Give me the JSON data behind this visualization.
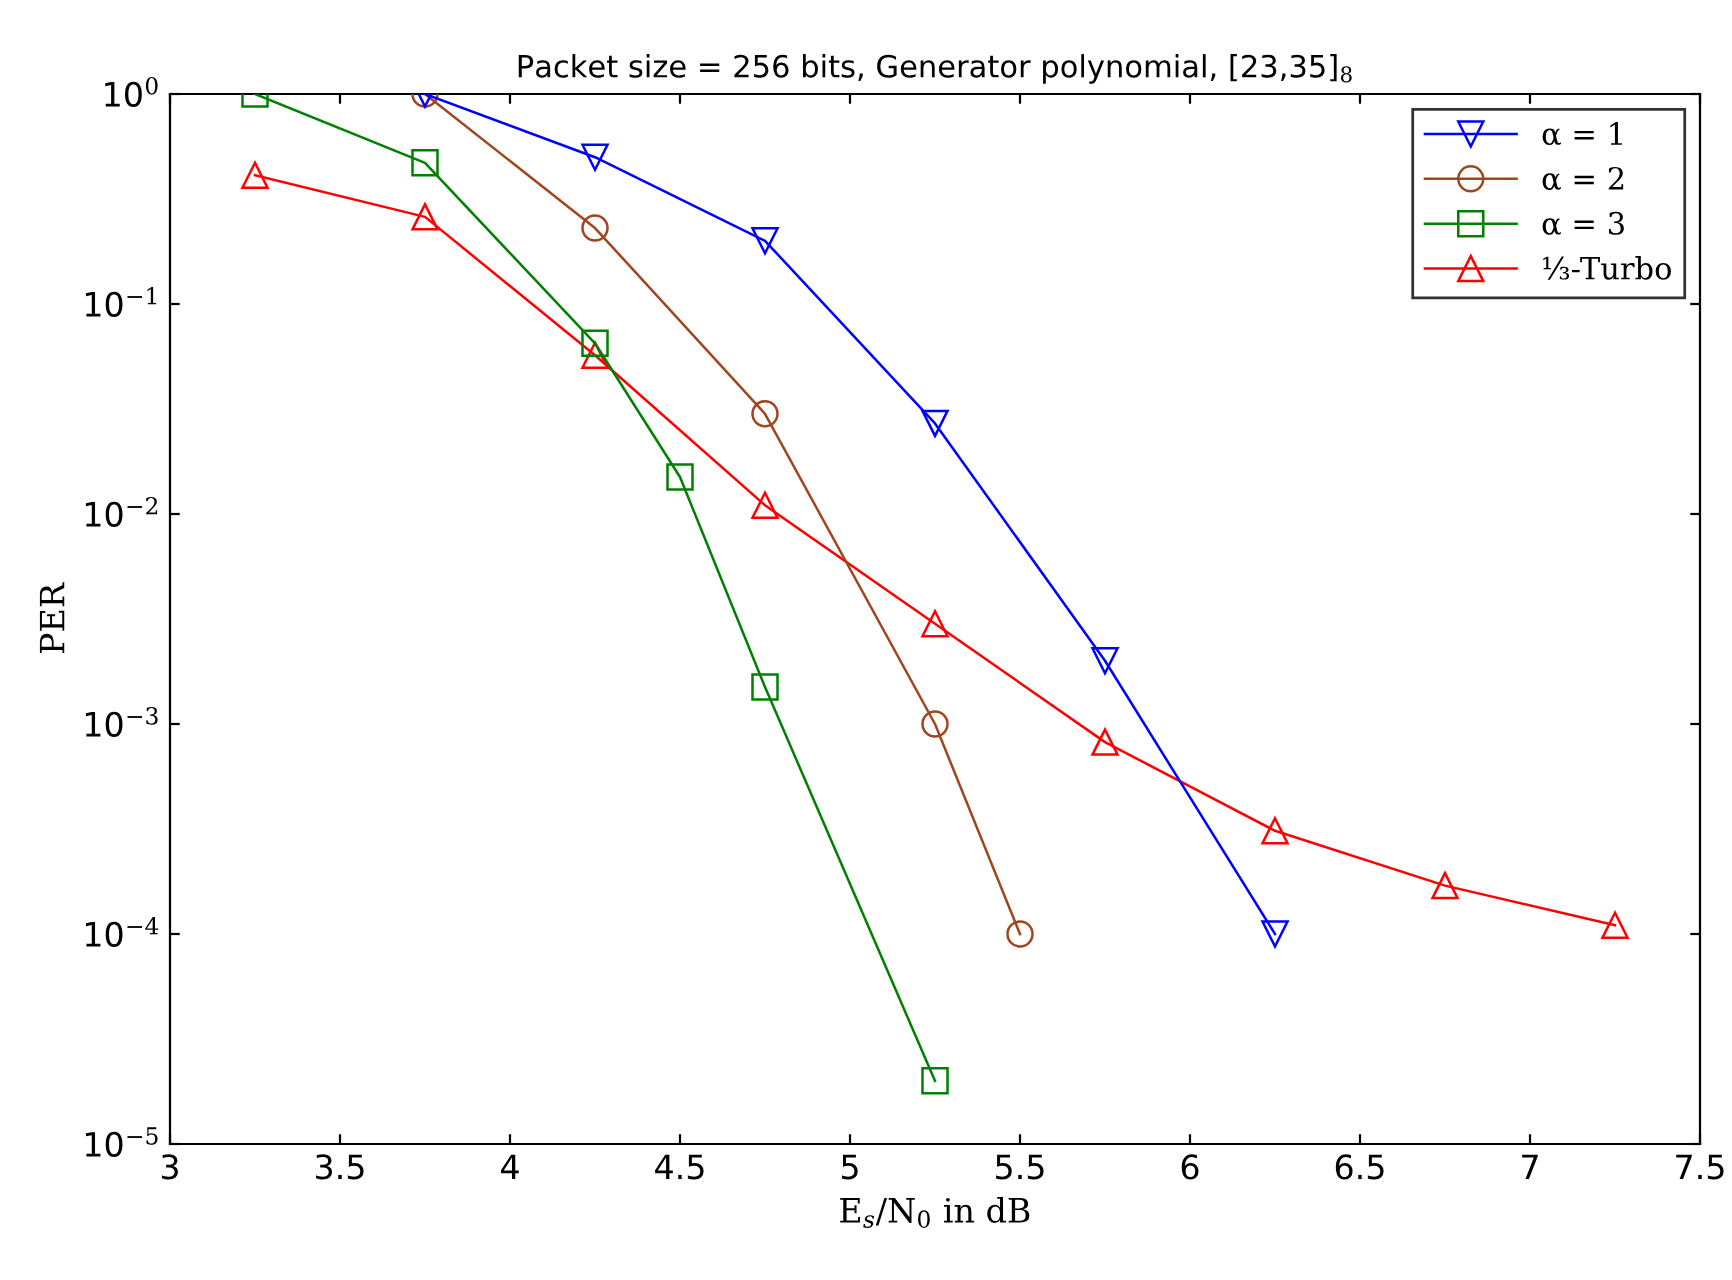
{
  "chart_data": {
    "type": "line",
    "title": "Packet size = 256 bits, Generator polynomial, [23,35]$_{8}$",
    "xlabel": "E$_{s}$/N$_{0}$ in dB",
    "ylabel": "PER",
    "log": "y",
    "grid": false,
    "legend": "top right",
    "xlim": [
      3,
      7.5
    ],
    "xticks": [
      3,
      3.5,
      4,
      4.5,
      5,
      5.5,
      6,
      6.5,
      7,
      7.5
    ],
    "ylim": [
      1e-05,
      1
    ],
    "yticks": [
      {
        "value": 1e-05,
        "label": "10$^{−5}$"
      },
      {
        "value": 0.0001,
        "label": "10$^{−4}$"
      },
      {
        "value": 0.001,
        "label": "10$^{−3}$"
      },
      {
        "value": 0.01,
        "label": "10$^{−2}$"
      },
      {
        "value": 0.1,
        "label": "10$^{−1}$"
      },
      {
        "value": 1,
        "label": "10$^{0}$"
      }
    ],
    "series": [
      {
        "name": "α = 1",
        "color": "#0000ff",
        "marker": "triangle_down",
        "x": [
          3.75,
          4.25,
          4.75,
          5.25,
          5.75,
          6.25
        ],
        "values": [
          1.0,
          0.5,
          0.2,
          0.027,
          0.002,
          0.0001
        ]
      },
      {
        "name": "α = 2",
        "color": "#a0461e",
        "marker": "circle",
        "x": [
          3.75,
          4.25,
          4.75,
          5.25,
          5.5
        ],
        "values": [
          1.0,
          0.23,
          0.03,
          0.001,
          0.0001
        ]
      },
      {
        "name": "α = 3",
        "color": "#008000",
        "marker": "square",
        "x": [
          3.25,
          3.75,
          4.25,
          4.5,
          4.75,
          5.25
        ],
        "values": [
          1.0,
          0.47,
          0.065,
          0.015,
          0.0015,
          2e-05
        ]
      },
      {
        "name": "⅓-Turbo",
        "color": "#ff0000",
        "marker": "triangle",
        "x": [
          3.25,
          3.75,
          4.25,
          4.75,
          5.25,
          5.75,
          6.25,
          6.75,
          7.25
        ],
        "values": [
          0.41,
          0.26,
          0.057,
          0.011,
          0.003,
          0.00082,
          0.00031,
          0.00017,
          0.00011
        ]
      }
    ]
  }
}
